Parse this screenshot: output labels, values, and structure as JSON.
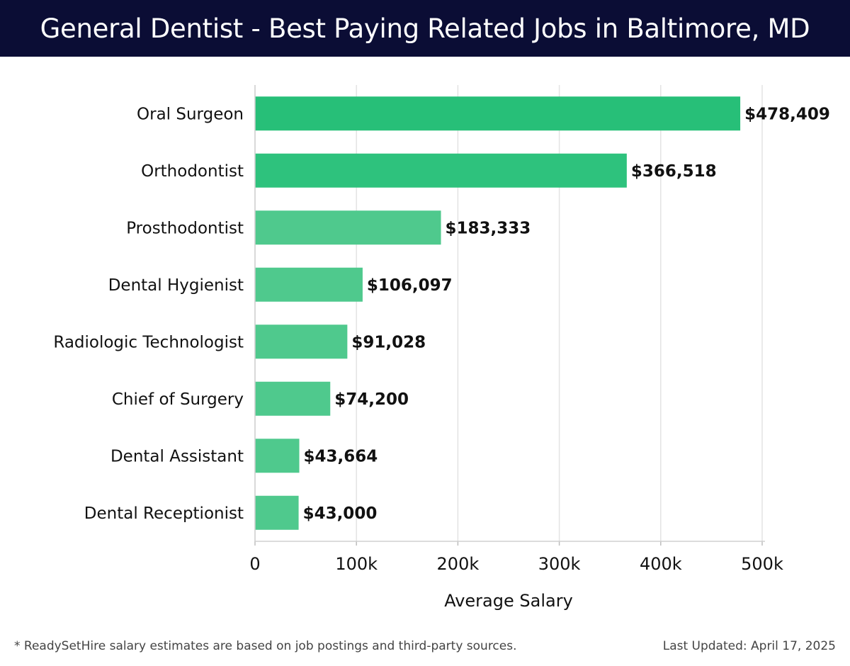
{
  "header": {
    "title": "General Dentist - Best Paying Related Jobs in Baltimore, MD"
  },
  "chart_data": {
    "type": "bar",
    "orientation": "horizontal",
    "categories": [
      "Oral Surgeon",
      "Orthodontist",
      "Prosthodontist",
      "Dental Hygienist",
      "Radiologic Technologist",
      "Chief of Surgery",
      "Dental Assistant",
      "Dental Receptionist"
    ],
    "values": [
      478409,
      366518,
      183333,
      106097,
      91028,
      74200,
      43664,
      43000
    ],
    "value_labels": [
      "$478,409",
      "$366,518",
      "$183,333",
      "$106,097",
      "$91,028",
      "$74,200",
      "$43,664",
      "$43,000"
    ],
    "bar_colors": [
      "#27bf78",
      "#2ec27d",
      "#4fc98d",
      "#4fc98d",
      "#4fc98d",
      "#4fc98d",
      "#4fc98d",
      "#4fc98d"
    ],
    "xlabel": "Average Salary",
    "ylabel": "",
    "xlim": [
      0,
      500000
    ],
    "xticks": [
      0,
      100000,
      200000,
      300000,
      400000,
      500000
    ],
    "xtick_labels": [
      "0",
      "100k",
      "200k",
      "300k",
      "400k",
      "500k"
    ],
    "grid": true
  },
  "footer": {
    "note": "* ReadySetHire salary estimates are based on job postings and third-party sources.",
    "updated": "Last Updated: April 17, 2025"
  }
}
